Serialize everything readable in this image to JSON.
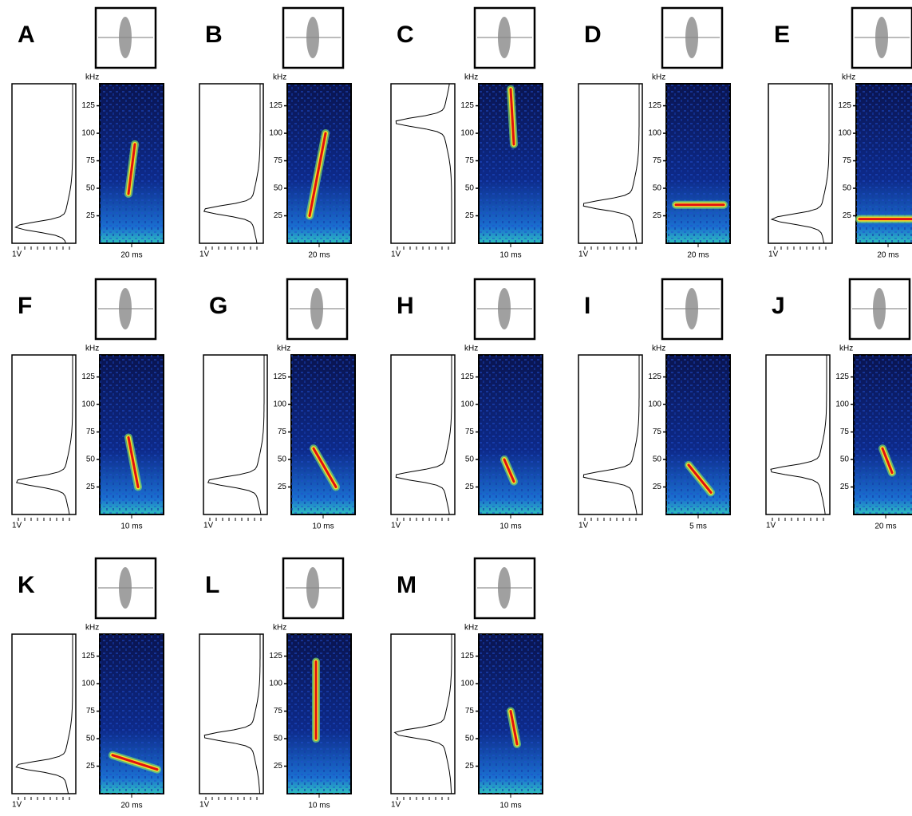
{
  "panels": [
    {
      "letter": "A",
      "unit": "kHz",
      "ticks": [
        25,
        50,
        75,
        100,
        125
      ],
      "amplitude": "1V",
      "scale": "20 ms"
    },
    {
      "letter": "B",
      "unit": "kHz",
      "ticks": [
        25,
        50,
        75,
        100,
        125
      ],
      "amplitude": "1V",
      "scale": "20 ms"
    },
    {
      "letter": "C",
      "unit": "kHz",
      "ticks": [
        25,
        50,
        75,
        100,
        125
      ],
      "amplitude": "1V",
      "scale": "10 ms"
    },
    {
      "letter": "D",
      "unit": "kHz",
      "ticks": [
        25,
        50,
        75,
        100,
        125
      ],
      "amplitude": "1V",
      "scale": "20 ms"
    },
    {
      "letter": "E",
      "unit": "kHz",
      "ticks": [
        25,
        50,
        75,
        100,
        125
      ],
      "amplitude": "1V",
      "scale": "20 ms"
    },
    {
      "letter": "F",
      "unit": "kHz",
      "ticks": [
        25,
        50,
        75,
        100,
        125
      ],
      "amplitude": "1V",
      "scale": "10 ms"
    },
    {
      "letter": "G",
      "unit": "kHz",
      "ticks": [
        25,
        50,
        75,
        100,
        125
      ],
      "amplitude": "1V",
      "scale": "10 ms"
    },
    {
      "letter": "H",
      "unit": "kHz",
      "ticks": [
        25,
        50,
        75,
        100,
        125
      ],
      "amplitude": "1V",
      "scale": "10 ms"
    },
    {
      "letter": "I",
      "unit": "kHz",
      "ticks": [
        25,
        50,
        75,
        100,
        125
      ],
      "amplitude": "1V",
      "scale": "5 ms"
    },
    {
      "letter": "J",
      "unit": "kHz",
      "ticks": [
        25,
        50,
        75,
        100,
        125
      ],
      "amplitude": "1V",
      "scale": "20 ms"
    },
    {
      "letter": "K",
      "unit": "kHz",
      "ticks": [
        25,
        50,
        75,
        100,
        125
      ],
      "amplitude": "1V",
      "scale": "20 ms"
    },
    {
      "letter": "L",
      "unit": "kHz",
      "ticks": [
        25,
        50,
        75,
        100,
        125
      ],
      "amplitude": "1V",
      "scale": "10 ms"
    },
    {
      "letter": "M",
      "unit": "kHz",
      "ticks": [
        25,
        50,
        75,
        100,
        125
      ],
      "amplitude": "1V",
      "scale": "10 ms"
    }
  ]
}
